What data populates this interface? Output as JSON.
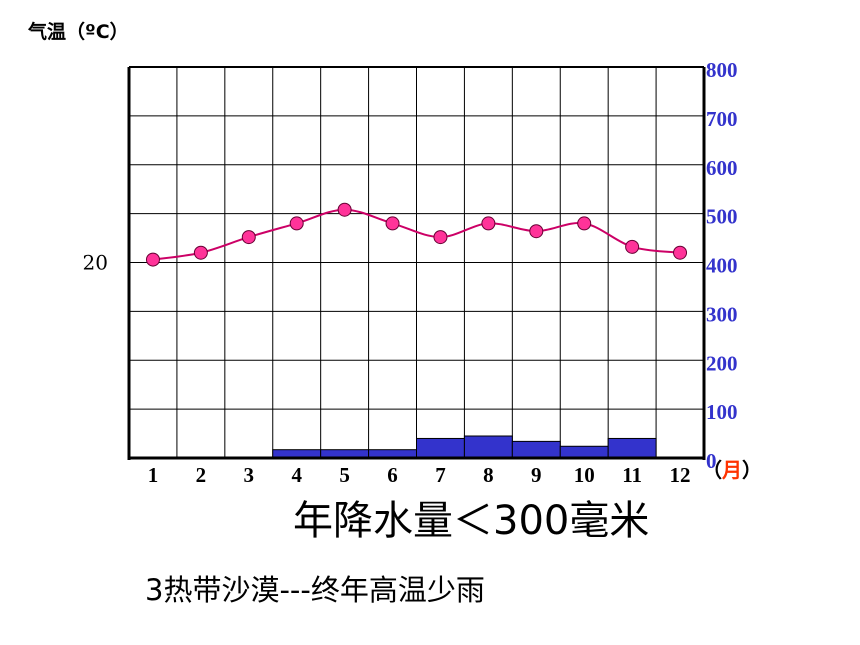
{
  "chart_data": {
    "type": "bar-line",
    "categories": [
      "1",
      "2",
      "3",
      "4",
      "5",
      "6",
      "7",
      "8",
      "9",
      "10",
      "11",
      "12"
    ],
    "temperature": {
      "label": "气温（ºC）",
      "unit": "ºC",
      "values": [
        20.3,
        21.0,
        22.6,
        24.0,
        25.4,
        24.0,
        22.6,
        24.0,
        23.2,
        24.0,
        21.6,
        21.0
      ],
      "tick_labels": [
        {
          "value": 20,
          "text": "20"
        }
      ],
      "ylim": [
        0,
        40
      ],
      "color": "#cc0066",
      "marker_color": "#ff3399"
    },
    "precipitation": {
      "values": [
        0,
        0,
        0,
        17,
        17,
        17,
        40,
        45,
        34,
        24,
        40,
        0
      ],
      "ylim": [
        0,
        800
      ],
      "ticks": [
        0,
        100,
        200,
        300,
        400,
        500,
        600,
        700,
        800
      ],
      "color": "#3333cc"
    },
    "x_unit": {
      "open": "（",
      "month": "月",
      "close": "）",
      "month_color": "#ff3300"
    },
    "grid": true
  },
  "captions": {
    "annual_precip": "年降水量＜300毫米",
    "climate": "3热带沙漠---终年高温少雨"
  }
}
